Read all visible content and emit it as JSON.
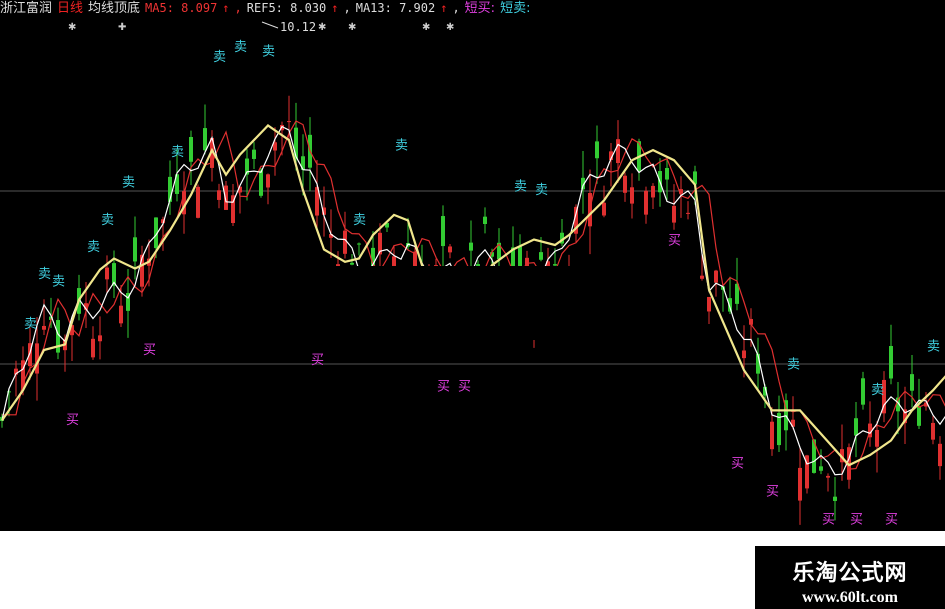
{
  "header": {
    "stock_name": "浙江富润",
    "period": "日线",
    "indicator_name": "均线顶底",
    "ma5": "MA5: 8.097",
    "ref5": "REF5: 8.030",
    "ma13": "MA13: 7.902",
    "arrow": "↑",
    "buy_label": "短买:",
    "sell_label": "短卖:"
  },
  "watermark": {
    "title": "乐淘公式网",
    "url": "www.60lt.com"
  },
  "colors": {
    "background": "#000000",
    "ma_long": "#f0e68c",
    "ma_short": "#ffffff",
    "ref": "#e03030",
    "up": "#e03030",
    "down": "#33cc33",
    "buy": "#e040e0",
    "sell": "#40d0e0",
    "grid": "#555555"
  },
  "chart_data": {
    "type": "line",
    "title": "",
    "max_price_label": "10.12",
    "ylim": [
      5.6,
      10.12
    ],
    "grid": true,
    "ma13_line": {
      "x": [
        0,
        3,
        6,
        9,
        11,
        14,
        16,
        19,
        21,
        24,
        27,
        30,
        32,
        34,
        38,
        41,
        43,
        46,
        49,
        51,
        53,
        56,
        58,
        60,
        65,
        70,
        73,
        76,
        79,
        81,
        86,
        90,
        93,
        96,
        99,
        101,
        106,
        110,
        114,
        119,
        121,
        124,
        127,
        130,
        133,
        135
      ],
      "y": [
        6.58,
        6.85,
        7.21,
        7.26,
        7.66,
        7.93,
        8.03,
        7.94,
        8.0,
        8.28,
        8.6,
        9.0,
        8.78,
        8.96,
        9.22,
        9.09,
        8.64,
        8.11,
        8.0,
        8.03,
        8.24,
        8.42,
        8.37,
        7.97,
        7.5,
        7.97,
        8.11,
        8.2,
        8.15,
        8.24,
        8.55,
        8.91,
        9.0,
        8.91,
        8.69,
        7.75,
        7.03,
        6.67,
        6.67,
        6.32,
        6.18,
        6.27,
        6.4,
        6.67,
        6.85,
        6.99
      ]
    },
    "sell_signals": {
      "label": "卖",
      "x": [
        4,
        6,
        8,
        13,
        15,
        18,
        25,
        31,
        34,
        38,
        51,
        57,
        74,
        77,
        113,
        125,
        133
      ],
      "y": [
        7.46,
        7.91,
        7.84,
        8.15,
        8.39,
        8.73,
        9.0,
        9.85,
        9.94,
        9.9,
        8.39,
        9.06,
        8.69,
        8.66,
        7.1,
        6.87,
        7.26
      ]
    },
    "buy_signals": {
      "label": "买",
      "x": [
        10,
        21,
        45,
        63,
        66,
        96,
        105,
        110,
        118,
        122,
        127
      ],
      "y": [
        6.6,
        7.23,
        7.14,
        6.9,
        6.9,
        8.21,
        6.21,
        5.96,
        5.71,
        5.71,
        5.71
      ]
    }
  }
}
